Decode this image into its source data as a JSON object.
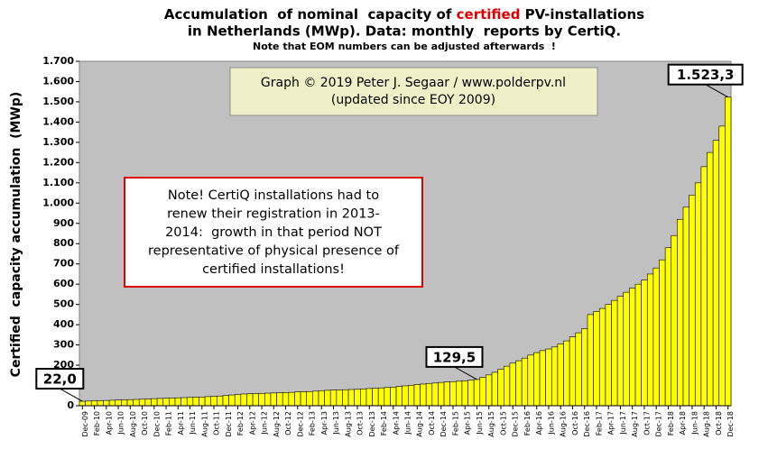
{
  "chart_data": {
    "type": "bar",
    "title": {
      "before": "Accumulation  of nominal  capacity of ",
      "highlight": "certified",
      "after": " PV-installations"
    },
    "title_line2": "in Netherlands (MWp). Data: monthly  reports by CertiQ.",
    "subtitle": "Note that EOM numbers can be adjusted afterwards  !",
    "y_label": "Certified  capacity accumulation  (MWp)",
    "credit": [
      "Graph © 2019 Peter J. Segaar / www.polderpv.nl",
      "(updated since EOY 2009)"
    ],
    "note": [
      "Note! CertiQ installations had to",
      "renew their registration in 2013-",
      "2014:  growth in that period NOT",
      "representative of physical presence of",
      "certified installations!"
    ],
    "categories": [
      "Dec-09",
      null,
      "Feb-10",
      null,
      "Apr-10",
      null,
      "Jun-10",
      null,
      "Aug-10",
      null,
      "Oct-10",
      null,
      "Dec-10",
      null,
      "Feb-11",
      null,
      "Apr-11",
      null,
      "Jun-11",
      null,
      "Aug-11",
      null,
      "Oct-11",
      null,
      "Dec-11",
      null,
      "Feb-12",
      null,
      "Apr-12",
      null,
      "Jun-12",
      null,
      "Aug-12",
      null,
      "Oct-12",
      null,
      "Dec-12",
      null,
      "Feb-13",
      null,
      "Apr-13",
      null,
      "Jun-13",
      null,
      "Aug-13",
      null,
      "Oct-13",
      null,
      "Dec-13",
      null,
      "Feb-14",
      null,
      "Apr-14",
      null,
      "Jun-14",
      null,
      "Aug-14",
      null,
      "Oct-14",
      null,
      "Dec-14",
      null,
      "Feb-15",
      null,
      "Apr-15",
      null,
      "Jun-15",
      null,
      "Aug-15",
      null,
      "Oct-15",
      null,
      "Dec-15",
      null,
      "Feb-16",
      null,
      "Apr-16",
      null,
      "Jun-16",
      null,
      "Aug-16",
      null,
      "Oct-16",
      null,
      "Dec-16",
      null,
      "Feb-17",
      null,
      "Apr-17",
      null,
      "Jun-17",
      null,
      "Aug-17",
      null,
      "Oct-17",
      null,
      "Dec-17",
      null,
      "Feb-18",
      null,
      "Apr-18",
      null,
      "Jun-18",
      null,
      "Aug-18",
      null,
      "Oct-18",
      null,
      "Dec-18"
    ],
    "values": [
      22,
      23,
      24,
      25,
      26,
      27,
      28,
      29,
      30,
      31,
      32,
      33,
      35,
      36,
      37,
      38,
      39,
      40,
      41,
      42,
      43,
      45,
      46,
      48,
      50,
      53,
      56,
      58,
      59,
      60,
      61,
      62,
      63,
      64,
      65,
      66,
      68,
      69,
      70,
      72,
      74,
      76,
      77,
      78,
      79,
      80,
      81,
      83,
      85,
      86,
      88,
      90,
      92,
      95,
      98,
      101,
      104,
      107,
      110,
      112,
      115,
      117,
      119,
      121,
      123,
      126,
      129.5,
      140,
      152,
      165,
      180,
      195,
      210,
      222,
      235,
      250,
      262,
      272,
      280,
      290,
      305,
      320,
      340,
      360,
      380,
      450,
      465,
      480,
      500,
      520,
      540,
      560,
      580,
      600,
      620,
      650,
      680,
      720,
      780,
      840,
      920,
      980,
      1040,
      1100,
      1180,
      1250,
      1310,
      1380,
      1523.3
    ],
    "value_labels": [
      "22,0",
      null,
      null,
      null,
      null,
      null,
      null,
      null,
      null,
      null,
      null,
      null,
      null,
      null,
      null,
      null,
      null,
      null,
      null,
      null,
      null,
      null,
      null,
      null,
      null,
      null,
      null,
      null,
      null,
      null,
      null,
      null,
      null,
      null,
      null,
      null,
      null,
      null,
      null,
      null,
      null,
      null,
      null,
      null,
      null,
      null,
      null,
      null,
      null,
      null,
      null,
      null,
      null,
      null,
      null,
      null,
      null,
      null,
      null,
      null,
      null,
      null,
      null,
      null,
      null,
      null,
      "129,5",
      null,
      null,
      null,
      null,
      null,
      null,
      null,
      null,
      null,
      null,
      null,
      null,
      null,
      null,
      null,
      null,
      null,
      null,
      null,
      null,
      null,
      null,
      null,
      null,
      null,
      null,
      null,
      null,
      null,
      null,
      null,
      null,
      null,
      null,
      null,
      null,
      null,
      null,
      null,
      null,
      null,
      "1.523,3"
    ],
    "color": "#ffff00",
    "ylim": [
      0,
      1700
    ],
    "yticks": [
      0,
      100,
      200,
      300,
      400,
      500,
      600,
      700,
      800,
      900,
      {
        "value": 1000,
        "label": "1.000"
      },
      {
        "value": 1100,
        "label": "1.100"
      },
      {
        "value": 1200,
        "label": "1.200"
      },
      {
        "value": 1300,
        "label": "1.300"
      },
      {
        "value": 1400,
        "label": "1.400"
      },
      {
        "value": 1500,
        "label": "1.500"
      },
      {
        "value": 1600,
        "label": "1.600"
      },
      {
        "value": 1700,
        "label": "1.700"
      }
    ],
    "grid": false
  }
}
